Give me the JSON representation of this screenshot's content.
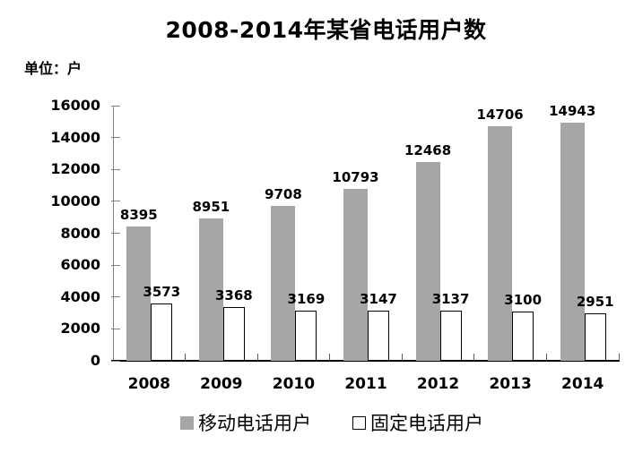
{
  "chart_data": {
    "type": "bar",
    "title": "2008-2014年某省电话用户数",
    "unit_label": "单位：户",
    "categories": [
      "2008",
      "2009",
      "2010",
      "2011",
      "2012",
      "2013",
      "2014"
    ],
    "series": [
      {
        "name": "移动电话用户",
        "color": "#A6A6A6",
        "values": [
          8395,
          8951,
          9708,
          10793,
          12468,
          14706,
          14943
        ]
      },
      {
        "name": "固定电话用户",
        "color": "#FFFFFF",
        "values": [
          3573,
          3368,
          3169,
          3147,
          3137,
          3100,
          2951
        ]
      }
    ],
    "xlabel": "",
    "ylabel": "",
    "ylim": [
      0,
      16000
    ],
    "yticks": [
      0,
      2000,
      4000,
      6000,
      8000,
      10000,
      12000,
      14000,
      16000
    ],
    "grid": false,
    "legend_position": "bottom",
    "data_labels": true,
    "colors": {
      "axis": "#808080",
      "baseline": "#000000",
      "mobile_bar": "#A6A6A6",
      "fixed_bar_fill": "#FFFFFF",
      "fixed_bar_border": "#000000",
      "text": "#000000"
    }
  }
}
